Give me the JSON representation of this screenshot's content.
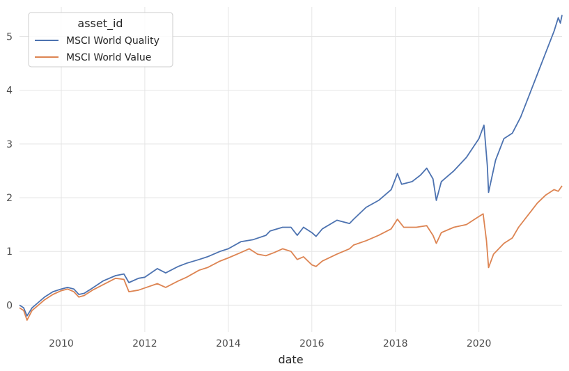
{
  "chart_data": {
    "type": "line",
    "title": "",
    "xlabel": "date",
    "ylabel": "",
    "xlim": [
      2009.0,
      2021.99
    ],
    "ylim": [
      -0.5,
      5.55
    ],
    "x_ticks": [
      2010,
      2012,
      2014,
      2016,
      2018,
      2020
    ],
    "x_tick_labels": [
      "2010",
      "2012",
      "2014",
      "2016",
      "2018",
      "2020"
    ],
    "y_ticks": [
      0,
      1,
      2,
      3,
      4,
      5
    ],
    "y_tick_labels": [
      "0",
      "1",
      "2",
      "3",
      "4",
      "5"
    ],
    "grid": true,
    "legend": {
      "title": "asset_id",
      "placement": "top-left"
    },
    "series": [
      {
        "name": "MSCI World Quality",
        "color": "#4c72b0",
        "points": [
          [
            2009.0,
            0.0
          ],
          [
            2009.1,
            -0.05
          ],
          [
            2009.18,
            -0.2
          ],
          [
            2009.3,
            -0.05
          ],
          [
            2009.45,
            0.05
          ],
          [
            2009.6,
            0.15
          ],
          [
            2009.8,
            0.25
          ],
          [
            2010.0,
            0.3
          ],
          [
            2010.15,
            0.33
          ],
          [
            2010.3,
            0.3
          ],
          [
            2010.42,
            0.2
          ],
          [
            2010.55,
            0.22
          ],
          [
            2010.75,
            0.32
          ],
          [
            2011.0,
            0.45
          ],
          [
            2011.3,
            0.55
          ],
          [
            2011.5,
            0.58
          ],
          [
            2011.62,
            0.42
          ],
          [
            2011.85,
            0.5
          ],
          [
            2012.0,
            0.52
          ],
          [
            2012.3,
            0.68
          ],
          [
            2012.5,
            0.6
          ],
          [
            2012.8,
            0.72
          ],
          [
            2013.0,
            0.78
          ],
          [
            2013.3,
            0.85
          ],
          [
            2013.5,
            0.9
          ],
          [
            2013.8,
            1.0
          ],
          [
            2014.0,
            1.05
          ],
          [
            2014.3,
            1.18
          ],
          [
            2014.6,
            1.22
          ],
          [
            2014.9,
            1.3
          ],
          [
            2015.0,
            1.38
          ],
          [
            2015.3,
            1.45
          ],
          [
            2015.5,
            1.45
          ],
          [
            2015.65,
            1.3
          ],
          [
            2015.8,
            1.45
          ],
          [
            2016.0,
            1.35
          ],
          [
            2016.1,
            1.28
          ],
          [
            2016.25,
            1.42
          ],
          [
            2016.6,
            1.58
          ],
          [
            2016.9,
            1.52
          ],
          [
            2017.0,
            1.6
          ],
          [
            2017.3,
            1.82
          ],
          [
            2017.6,
            1.95
          ],
          [
            2017.9,
            2.15
          ],
          [
            2018.05,
            2.45
          ],
          [
            2018.15,
            2.25
          ],
          [
            2018.4,
            2.3
          ],
          [
            2018.6,
            2.42
          ],
          [
            2018.75,
            2.55
          ],
          [
            2018.9,
            2.35
          ],
          [
            2018.98,
            1.95
          ],
          [
            2019.1,
            2.3
          ],
          [
            2019.4,
            2.5
          ],
          [
            2019.7,
            2.75
          ],
          [
            2020.0,
            3.1
          ],
          [
            2020.12,
            3.35
          ],
          [
            2020.2,
            2.6
          ],
          [
            2020.23,
            2.1
          ],
          [
            2020.4,
            2.7
          ],
          [
            2020.6,
            3.1
          ],
          [
            2020.8,
            3.2
          ],
          [
            2021.0,
            3.5
          ],
          [
            2021.2,
            3.9
          ],
          [
            2021.4,
            4.3
          ],
          [
            2021.6,
            4.7
          ],
          [
            2021.8,
            5.1
          ],
          [
            2021.9,
            5.35
          ],
          [
            2021.95,
            5.25
          ],
          [
            2021.99,
            5.4
          ]
        ]
      },
      {
        "name": "MSCI World Value",
        "color": "#dd8452",
        "points": [
          [
            2009.0,
            -0.05
          ],
          [
            2009.1,
            -0.1
          ],
          [
            2009.18,
            -0.28
          ],
          [
            2009.3,
            -0.1
          ],
          [
            2009.45,
            0.0
          ],
          [
            2009.6,
            0.1
          ],
          [
            2009.8,
            0.2
          ],
          [
            2010.0,
            0.27
          ],
          [
            2010.15,
            0.3
          ],
          [
            2010.3,
            0.25
          ],
          [
            2010.42,
            0.15
          ],
          [
            2010.55,
            0.18
          ],
          [
            2010.75,
            0.28
          ],
          [
            2011.0,
            0.38
          ],
          [
            2011.3,
            0.5
          ],
          [
            2011.5,
            0.48
          ],
          [
            2011.62,
            0.25
          ],
          [
            2011.85,
            0.28
          ],
          [
            2012.0,
            0.32
          ],
          [
            2012.3,
            0.4
          ],
          [
            2012.5,
            0.33
          ],
          [
            2012.8,
            0.45
          ],
          [
            2013.0,
            0.52
          ],
          [
            2013.3,
            0.65
          ],
          [
            2013.5,
            0.7
          ],
          [
            2013.8,
            0.82
          ],
          [
            2014.0,
            0.88
          ],
          [
            2014.3,
            0.98
          ],
          [
            2014.5,
            1.05
          ],
          [
            2014.7,
            0.95
          ],
          [
            2014.9,
            0.92
          ],
          [
            2015.1,
            0.98
          ],
          [
            2015.3,
            1.05
          ],
          [
            2015.5,
            1.0
          ],
          [
            2015.65,
            0.85
          ],
          [
            2015.8,
            0.9
          ],
          [
            2016.0,
            0.75
          ],
          [
            2016.1,
            0.72
          ],
          [
            2016.25,
            0.82
          ],
          [
            2016.6,
            0.95
          ],
          [
            2016.9,
            1.05
          ],
          [
            2017.0,
            1.12
          ],
          [
            2017.3,
            1.2
          ],
          [
            2017.6,
            1.3
          ],
          [
            2017.9,
            1.42
          ],
          [
            2018.05,
            1.6
          ],
          [
            2018.2,
            1.45
          ],
          [
            2018.5,
            1.45
          ],
          [
            2018.75,
            1.48
          ],
          [
            2018.9,
            1.3
          ],
          [
            2018.98,
            1.15
          ],
          [
            2019.1,
            1.35
          ],
          [
            2019.4,
            1.45
          ],
          [
            2019.7,
            1.5
          ],
          [
            2020.0,
            1.65
          ],
          [
            2020.1,
            1.7
          ],
          [
            2020.18,
            1.2
          ],
          [
            2020.23,
            0.7
          ],
          [
            2020.35,
            0.95
          ],
          [
            2020.6,
            1.15
          ],
          [
            2020.8,
            1.25
          ],
          [
            2020.95,
            1.45
          ],
          [
            2021.2,
            1.7
          ],
          [
            2021.4,
            1.9
          ],
          [
            2021.6,
            2.05
          ],
          [
            2021.8,
            2.15
          ],
          [
            2021.9,
            2.12
          ],
          [
            2021.99,
            2.22
          ]
        ]
      }
    ]
  }
}
